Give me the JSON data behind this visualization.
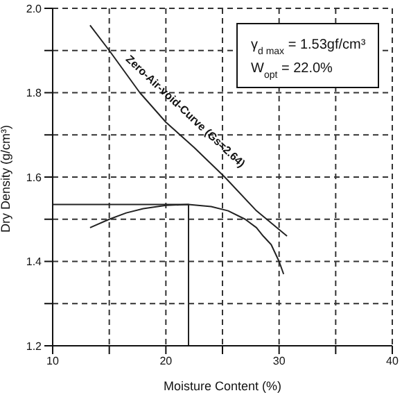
{
  "chart_data": {
    "type": "line",
    "xlabel": "Moisture Content (%)",
    "ylabel": "Dry Density (g/cm³)",
    "xlim": [
      10,
      40
    ],
    "xticks": [
      10,
      {
        "value": 15,
        "label": null
      },
      20,
      {
        "value": 25,
        "label": null
      },
      30,
      {
        "value": 35,
        "label": null
      },
      40
    ],
    "ylim": [
      1.2,
      2.0
    ],
    "yticks": [
      1.2,
      {
        "value": 1.3,
        "label": null
      },
      1.4,
      {
        "value": 1.5,
        "label": null
      },
      1.6,
      {
        "value": 1.7,
        "label": null
      },
      1.8,
      {
        "value": 1.9,
        "label": null
      },
      {
        "value": 2.0,
        "label": "2.0"
      }
    ],
    "grid": true,
    "marker": "none",
    "line_style": "solid",
    "series": [
      {
        "color": "#222222",
        "x": [
          13.3,
          15,
          17.7,
          20,
          22.5,
          25.2,
          28,
          30.7
        ],
        "values": [
          1.96,
          1.9,
          1.8,
          1.73,
          1.67,
          1.6,
          1.52,
          1.46
        ]
      },
      {
        "color": "#222222",
        "x": [
          13.3,
          15,
          16.5,
          18,
          20,
          22,
          24,
          25.5,
          27,
          28,
          28.6,
          29.3,
          30,
          30.4
        ],
        "values": [
          1.48,
          1.5,
          1.515,
          1.525,
          1.533,
          1.535,
          1.53,
          1.52,
          1.5,
          1.48,
          1.46,
          1.44,
          1.4,
          1.37
        ]
      },
      {
        "color": "#222222",
        "x": [
          10,
          22,
          22
        ],
        "values": [
          1.535,
          1.535,
          1.2
        ]
      }
    ],
    "annotations": [
      "γ$_{d max}$ = 1.53gf/cm³",
      "W$_{opt}$ = 22.0%",
      "Zero-Air-void-Curve (Gs=2.64)"
    ]
  }
}
